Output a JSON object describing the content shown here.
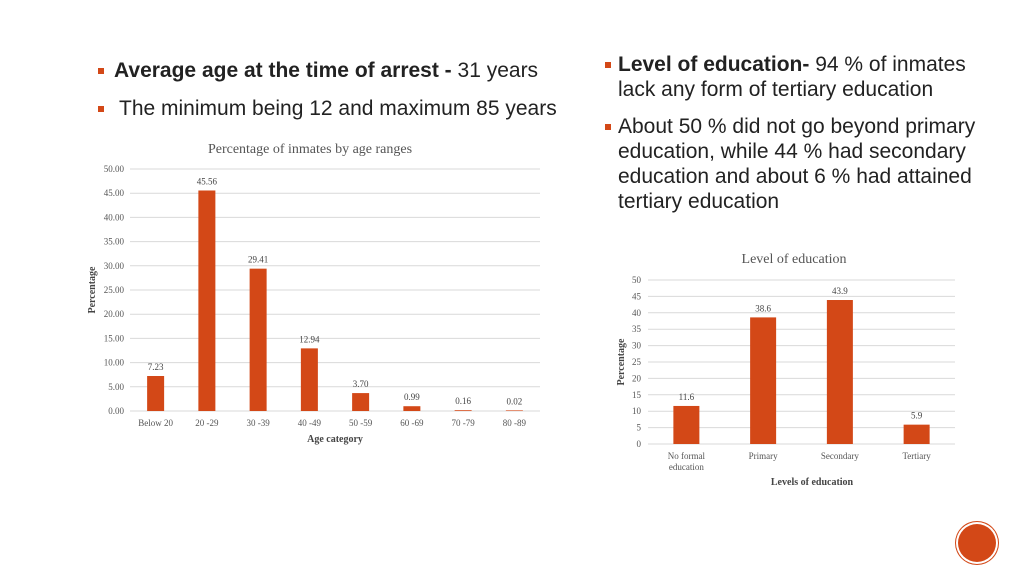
{
  "left_bullets": [
    {
      "bold": "Average age at the time of arrest - ",
      "text": "31 years"
    },
    {
      "bold": "",
      "text": "The minimum being 12 and maximum 85 years"
    }
  ],
  "right_bullets": [
    {
      "bold": "Level of education-",
      "text": " 94 % of inmates lack any form of tertiary education"
    },
    {
      "bold": "",
      "text": "About 50 % did not go beyond primary education, while 44 % had secondary education and about 6 % had attained tertiary education"
    }
  ],
  "chart_data": [
    {
      "type": "bar",
      "title": "Percentage of inmates by age ranges",
      "xlabel": "Age category",
      "ylabel": "Percentage",
      "categories": [
        "Below 20",
        "20 -29",
        "30 -39",
        "40 -49",
        "50 -59",
        "60 -69",
        "70 -79",
        "80 -89"
      ],
      "values": [
        7.23,
        45.56,
        29.41,
        12.94,
        3.7,
        0.99,
        0.16,
        0.02
      ],
      "value_labels": [
        "7.23",
        "45.56",
        "29.41",
        "12.94",
        "3.70",
        "0.99",
        "0.16",
        "0.02"
      ],
      "ylim": [
        0,
        50
      ],
      "yticks": [
        "0.00",
        "5.00",
        "10.00",
        "15.00",
        "20.00",
        "25.00",
        "30.00",
        "35.00",
        "40.00",
        "45.00",
        "50.00"
      ],
      "grid": true,
      "color": "#d34817"
    },
    {
      "type": "bar",
      "title": "Level of education",
      "xlabel": "Levels of education",
      "ylabel": "Percentage",
      "categories": [
        [
          "No formal",
          "education"
        ],
        [
          "Primary"
        ],
        [
          "Secondary"
        ],
        [
          "Tertiary"
        ]
      ],
      "values": [
        11.6,
        38.6,
        43.9,
        5.9
      ],
      "value_labels": [
        "11.6",
        "38.6",
        "43.9",
        "5.9"
      ],
      "ylim": [
        0,
        50
      ],
      "yticks": [
        "0",
        "5",
        "10",
        "15",
        "20",
        "25",
        "30",
        "35",
        "40",
        "45",
        "50"
      ],
      "grid": true,
      "color": "#d34817"
    }
  ],
  "accent_color": "#d34817"
}
